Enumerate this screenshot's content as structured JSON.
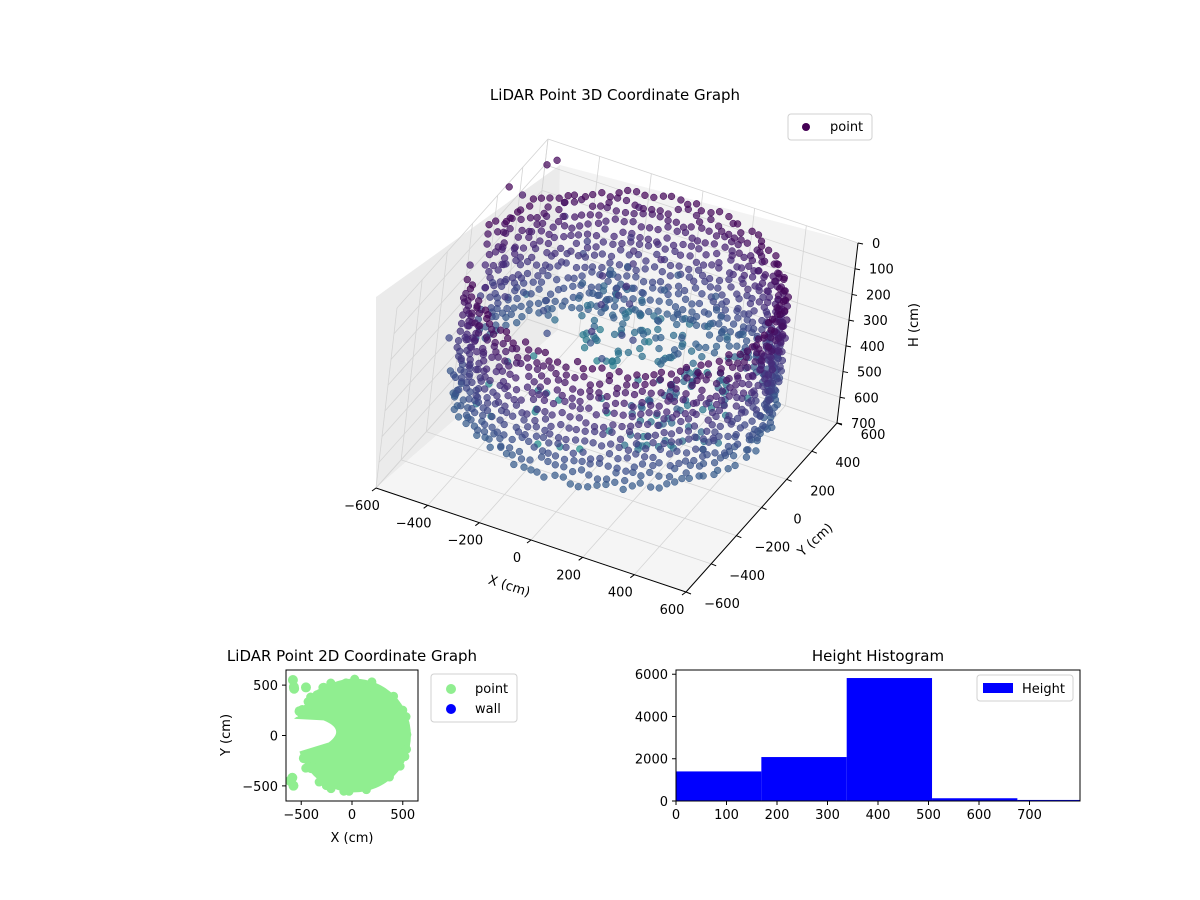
{
  "figure": {
    "background": "#ffffff"
  },
  "chart_data": [
    {
      "type": "scatter",
      "projection": "3d",
      "title": "LiDAR Point 3D Coordinate Graph",
      "xlabel": "X (cm)",
      "ylabel": "Y (cm)",
      "zlabel": "H (cm)",
      "xlim": [
        -600,
        600
      ],
      "ylim": [
        -600,
        600
      ],
      "zlim": [
        0,
        700
      ],
      "z_inverted": true,
      "x_ticks": [
        "−600",
        "−400",
        "−200",
        "0",
        "200",
        "400",
        "600"
      ],
      "y_ticks": [
        "−600",
        "−400",
        "−200",
        "0",
        "200",
        "400",
        "600"
      ],
      "z_ticks": [
        "0",
        "100",
        "200",
        "300",
        "400",
        "500",
        "600",
        "700"
      ],
      "colormap": "viridis",
      "grid": true,
      "legend": {
        "placement": "top-right",
        "entries": [
          {
            "name": "point",
            "color": "#440154"
          }
        ]
      },
      "series": [
        {
          "name": "point",
          "description": "dense ring of points at radius ~550 cm, heights ~0-500 cm, plus sparse outliers"
        }
      ]
    },
    {
      "type": "scatter",
      "title": "LiDAR Point 2D Coordinate Graph",
      "xlabel": "X (cm)",
      "ylabel": "Y (cm)",
      "xlim": [
        -650,
        650
      ],
      "ylim": [
        -650,
        650
      ],
      "x_ticks": [
        "−500",
        "0",
        "500"
      ],
      "y_ticks": [
        "−500",
        "0",
        "500"
      ],
      "grid": false,
      "legend": {
        "placement": "outside-right",
        "entries": [
          {
            "name": "point",
            "color": "#90ee90"
          },
          {
            "name": "wall",
            "color": "#0000ff"
          }
        ]
      },
      "series": [
        {
          "name": "point",
          "color": "#90ee90",
          "shape": "filled disc radius ~550 cm centered near (0,0) with notch on left side"
        },
        {
          "name": "wall",
          "color": "#0000ff",
          "points": []
        }
      ]
    },
    {
      "type": "bar",
      "subtype": "histogram",
      "title": "Height Histogram",
      "xlabel": "",
      "ylabel": "",
      "xlim": [
        0,
        800
      ],
      "ylim": [
        0,
        6200
      ],
      "x_ticks": [
        "0",
        "100",
        "200",
        "300",
        "400",
        "500",
        "600",
        "700"
      ],
      "y_ticks": [
        "0",
        "2000",
        "4000",
        "6000"
      ],
      "bin_edges": [
        0,
        169,
        338,
        507,
        676,
        845
      ],
      "values": [
        1400,
        2080,
        5820,
        130,
        50
      ],
      "color": "#0000ff",
      "legend": {
        "placement": "top-right",
        "entries": [
          {
            "name": "Height",
            "color": "#0000ff"
          }
        ]
      }
    }
  ]
}
